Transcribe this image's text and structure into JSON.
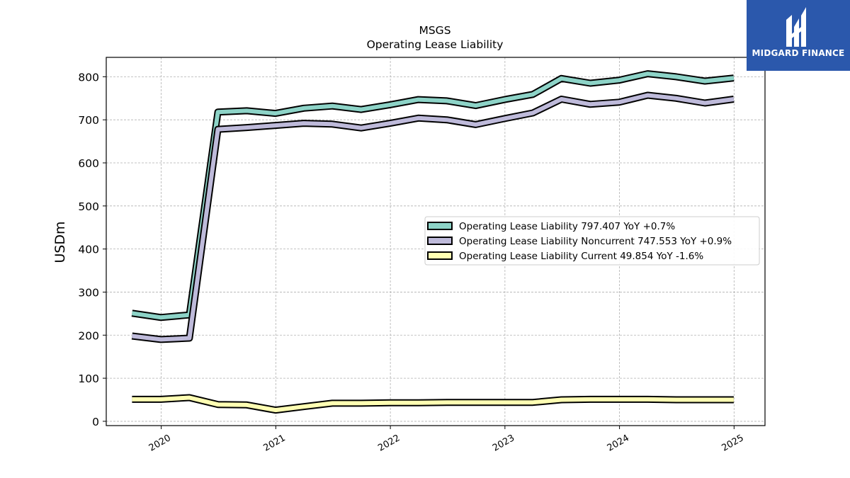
{
  "chart_data": {
    "type": "line",
    "title": "MSGS",
    "subtitle": "Operating Lease Liability",
    "ylabel": "USDm",
    "xlabel": "",
    "ylim": [
      -10,
      845
    ],
    "xlim": [
      2019.52,
      2025.27
    ],
    "yticks": [
      0,
      100,
      200,
      300,
      400,
      500,
      600,
      700,
      800
    ],
    "xticks": [
      "2020",
      "2021",
      "2022",
      "2023",
      "2024",
      "2025"
    ],
    "grid": true,
    "legend_position": "center-right",
    "x": [
      "2019-09-30",
      "2019-12-31",
      "2020-03-31",
      "2020-06-30",
      "2020-09-30",
      "2020-12-31",
      "2021-03-31",
      "2021-06-30",
      "2021-09-30",
      "2021-12-31",
      "2022-03-31",
      "2022-06-30",
      "2022-09-30",
      "2022-12-31",
      "2023-03-31",
      "2023-06-30",
      "2023-09-30",
      "2023-12-31",
      "2024-03-31",
      "2024-06-30",
      "2024-09-30",
      "2024-12-31"
    ],
    "series": [
      {
        "name": "Operating Lease Liability",
        "legend_label": "Operating Lease Liability  797.407 YoY +0.7%",
        "color": "#8dd3c7",
        "values": [
          251,
          241,
          247,
          718,
          721,
          715,
          727,
          732,
          724,
          735,
          747,
          744,
          733,
          747,
          759,
          796,
          785,
          792,
          807,
          800,
          790,
          797
        ]
      },
      {
        "name": "Operating Lease Liability Noncurrent",
        "legend_label": "Operating Lease Liability Noncurrent  747.553 YoY +0.9%",
        "color": "#bebada",
        "values": [
          198,
          190,
          193,
          678,
          682,
          687,
          692,
          690,
          681,
          692,
          704,
          700,
          689,
          703,
          716,
          748,
          736,
          741,
          757,
          750,
          739,
          748
        ]
      },
      {
        "name": "Operating Lease Liability Current",
        "legend_label": "Operating Lease Liability Current  49.854 YoY -1.6%",
        "color": "#ffffb3",
        "values": [
          51,
          51,
          55,
          39,
          38,
          26,
          34,
          42,
          42,
          43,
          43,
          44,
          44,
          44,
          44,
          50,
          51,
          51,
          51,
          50,
          50,
          50
        ]
      }
    ]
  },
  "logo": {
    "text": "MIDGARD FINANCE",
    "bg_color": "#2b58ac"
  }
}
